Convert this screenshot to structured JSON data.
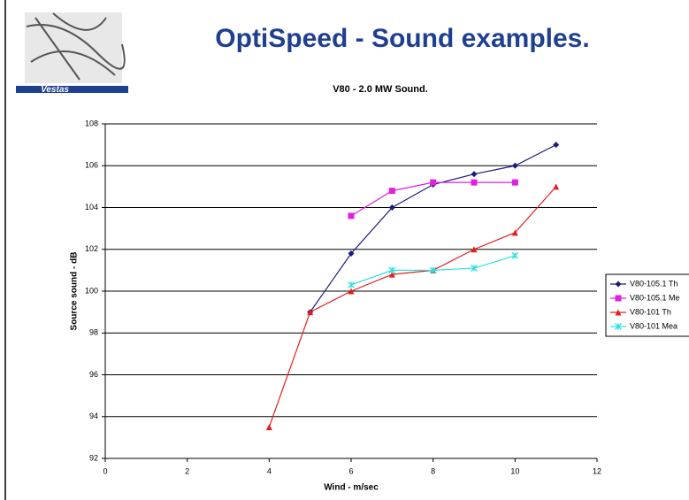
{
  "slide_title": "OptiSpeed - Sound examples.",
  "logo_text": "Vestas",
  "chart_data": {
    "type": "line",
    "title": "V80 - 2.0 MW Sound.",
    "x_label": "Wind - m/sec",
    "y_label": "Source sound - dB",
    "xlim": [
      0,
      12
    ],
    "xticks": [
      0,
      2,
      4,
      6,
      8,
      10,
      12
    ],
    "ylim": [
      92,
      108
    ],
    "yticks": [
      92,
      94,
      96,
      98,
      100,
      102,
      104,
      106,
      108
    ],
    "grid": true,
    "legend": "right",
    "series": [
      {
        "name": "V80-105.1 Th",
        "color": "#1c1c7a",
        "marker": "diamond",
        "x": [
          5,
          6,
          7,
          8,
          9,
          10,
          11
        ],
        "values": [
          99,
          101.8,
          104,
          105.1,
          105.6,
          106,
          107
        ]
      },
      {
        "name": "V80-105.1 Me",
        "color": "#e020e0",
        "marker": "square",
        "x": [
          6,
          7,
          8,
          9,
          10
        ],
        "values": [
          103.6,
          104.8,
          105.2,
          105.2,
          105.2
        ]
      },
      {
        "name": "V80-101 Th",
        "color": "#e02020",
        "marker": "triangle",
        "x": [
          4,
          5,
          6,
          7,
          8,
          9,
          10,
          11
        ],
        "values": [
          93.5,
          99,
          100,
          100.8,
          101,
          102,
          102.8,
          105
        ]
      },
      {
        "name": "V80-101 Mea",
        "color": "#30e0e0",
        "marker": "star",
        "x": [
          6,
          7,
          8,
          9,
          10
        ],
        "values": [
          100.3,
          101,
          101,
          101.1,
          101.7
        ]
      }
    ]
  }
}
